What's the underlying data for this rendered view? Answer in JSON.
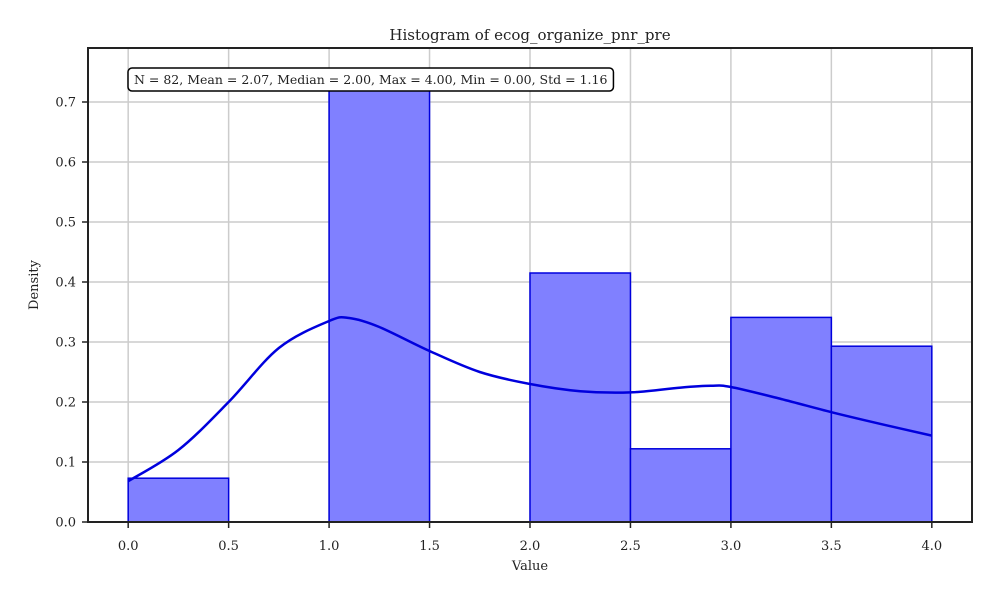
{
  "chart_data": {
    "type": "bar",
    "title": "Histogram of ecog_organize_pnr_pre",
    "xlabel": "Value",
    "ylabel": "Density",
    "xlim": [
      -0.2,
      4.2
    ],
    "ylim": [
      0,
      0.79
    ],
    "xticks": [
      "0.0",
      "0.5",
      "1.0",
      "1.5",
      "2.0",
      "2.5",
      "3.0",
      "3.5",
      "4.0"
    ],
    "yticks": [
      "0.0",
      "0.1",
      "0.2",
      "0.3",
      "0.4",
      "0.5",
      "0.6",
      "0.7"
    ],
    "grid": true,
    "bin_edges": [
      0.0,
      0.5,
      1.0,
      1.5,
      2.0,
      2.5,
      3.0,
      3.5,
      4.0
    ],
    "values": [
      0.073,
      0.0,
      0.732,
      0.0,
      0.415,
      0.122,
      0.341,
      0.293
    ],
    "kde": {
      "x": [
        0.0,
        0.25,
        0.5,
        0.75,
        1.0,
        1.1,
        1.25,
        1.5,
        1.75,
        2.0,
        2.25,
        2.5,
        2.75,
        2.9,
        3.0,
        3.25,
        3.5,
        3.75,
        4.0
      ],
      "y": [
        0.068,
        0.12,
        0.2,
        0.29,
        0.335,
        0.34,
        0.325,
        0.285,
        0.25,
        0.23,
        0.218,
        0.216,
        0.224,
        0.227,
        0.225,
        0.205,
        0.183,
        0.163,
        0.144
      ]
    },
    "annotation": "N = 82, Mean = 2.07, Median = 2.00, Max = 4.00, Min = 0.00, Std = 1.16",
    "colors": {
      "bar_fill": "#8080ff",
      "bar_edge": "#0000dd",
      "kde": "#0000dd",
      "grid": "#cccccc",
      "axes": "#222222"
    }
  }
}
